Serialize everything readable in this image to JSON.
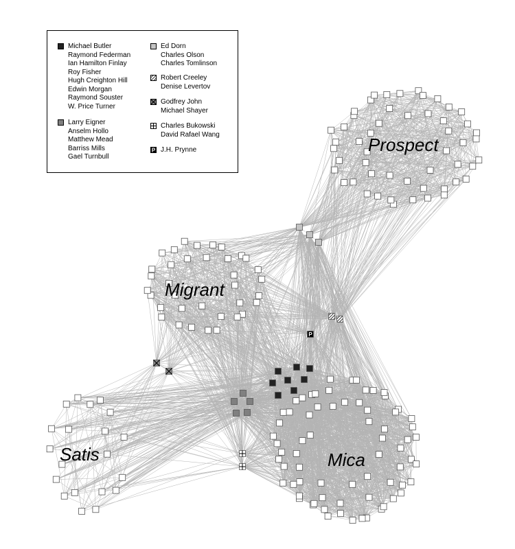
{
  "legend": {
    "groups": [
      {
        "pattern": "black",
        "names": [
          "Michael Butler",
          "Raymond Federman",
          "Ian Hamilton Finlay",
          "Roy Fisher",
          "Hugh Creighton Hill",
          "Edwin Morgan",
          "Raymond Souster",
          "W. Price Turner"
        ]
      },
      {
        "pattern": "darkgray",
        "names": [
          "Larry Eigner",
          "Anselm Hollo",
          "Matthew Mead",
          "Barriss Mills",
          "Gael Turnbull"
        ]
      },
      {
        "pattern": "lightgray",
        "names": [
          "Ed Dorn",
          "Charles Olson",
          "Charles Tomlinson"
        ]
      },
      {
        "pattern": "hatched",
        "names": [
          "Robert Creeley",
          "Denise Levertov"
        ]
      },
      {
        "pattern": "crossed",
        "names": [
          "Godfrey John",
          "Michael Shayer"
        ]
      },
      {
        "pattern": "grid",
        "names": [
          "Charles Bukowski",
          "David Rafael Wang"
        ]
      },
      {
        "pattern": "p-badge",
        "names": [
          "J.H. Prynne"
        ],
        "badge_letter": "P"
      }
    ]
  },
  "clusters": {
    "prospect": "Prospect",
    "migrant": "Migrant",
    "satis": "Satis",
    "mica": "Mica"
  },
  "colors": {
    "edge": "#b4b4b4",
    "node_fill": "#ffffff",
    "node_stroke": "#555555",
    "black": "#222222",
    "darkgray": "#808080",
    "lightgray": "#c4c4c4"
  }
}
